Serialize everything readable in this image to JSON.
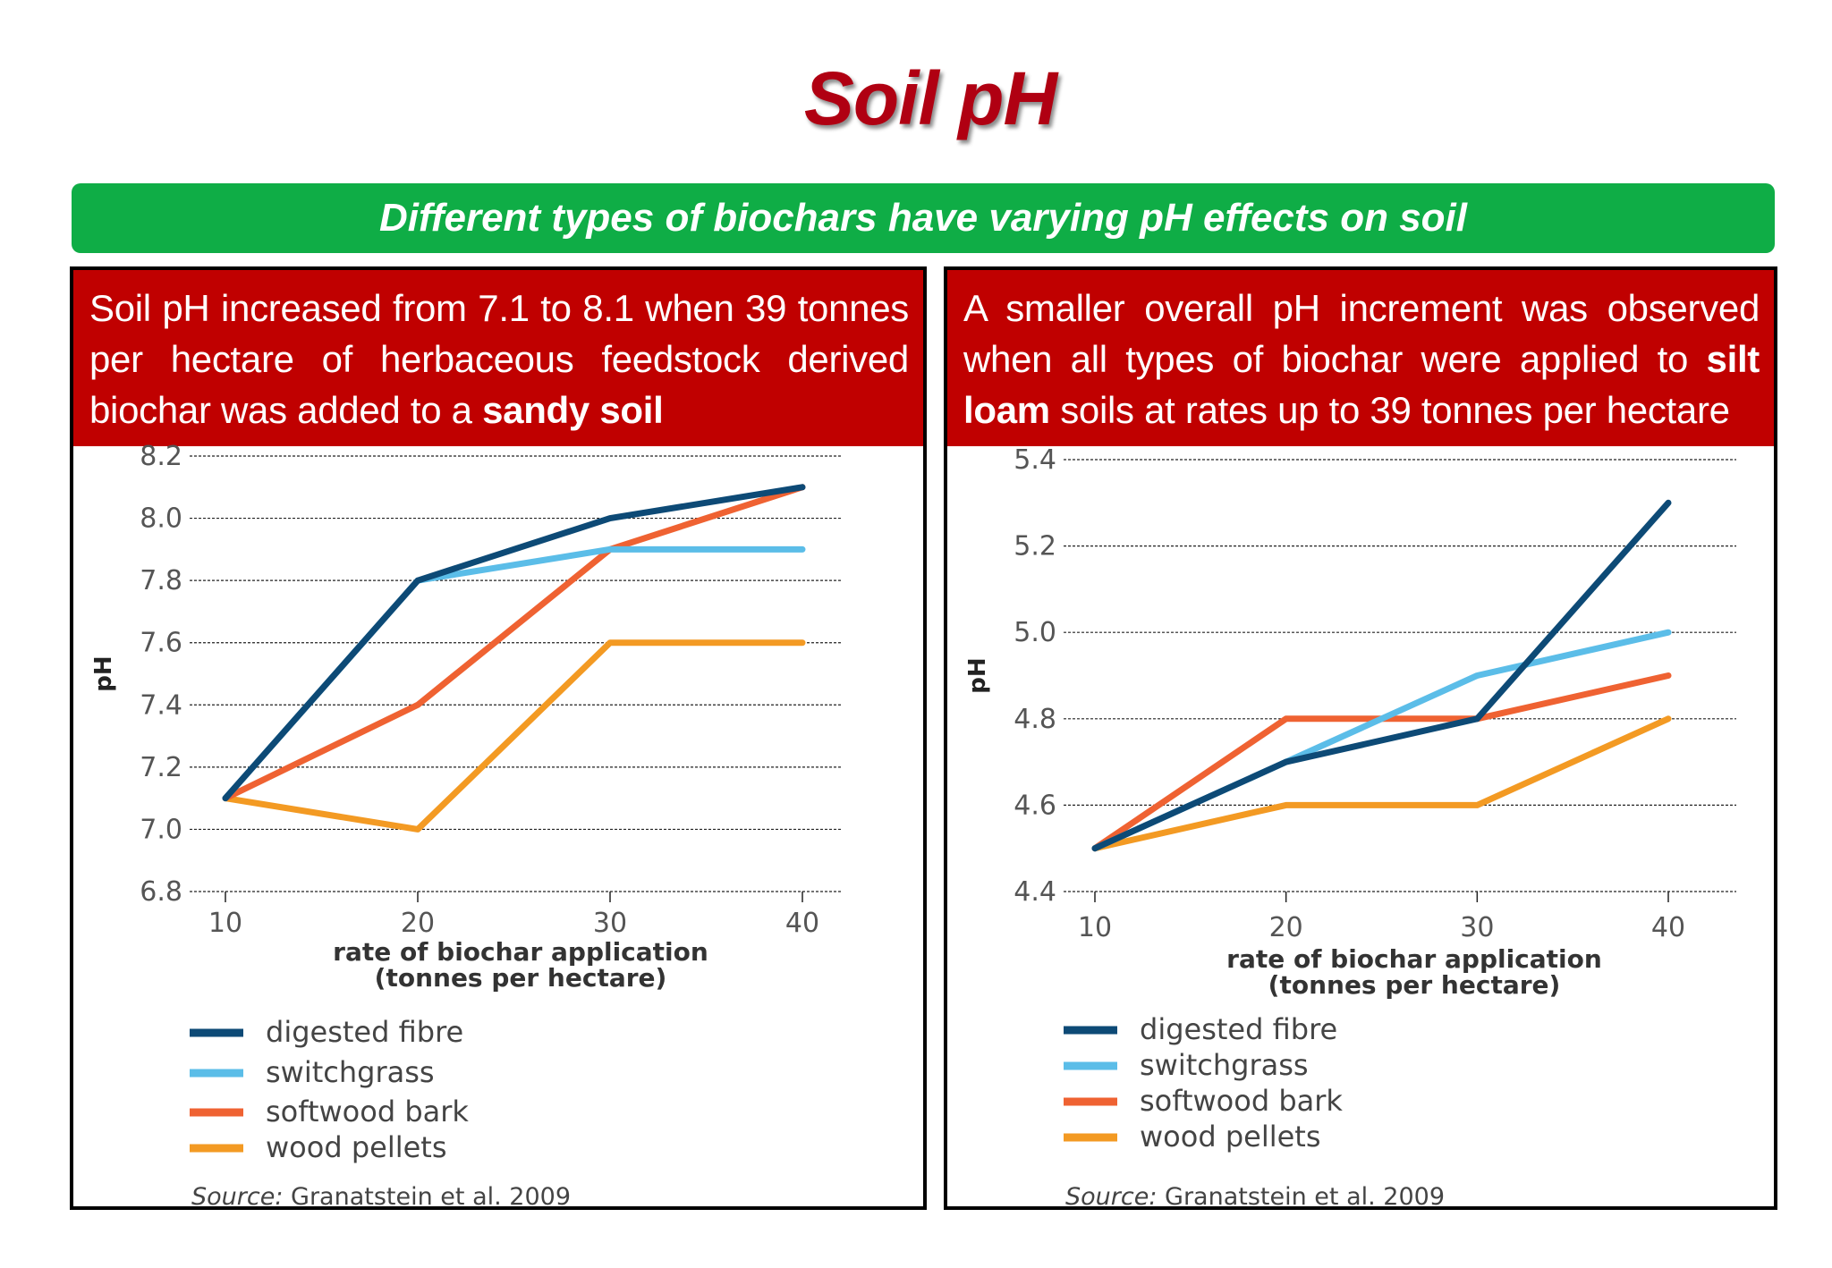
{
  "page": {
    "title": "Soil pH",
    "banner": "Different types of biochars have varying pH effects on soil"
  },
  "panels": [
    {
      "header_pre": "Soil pH increased from 7.1 to 8.1 when 39 tonnes per hectare of herbaceous feedstock derived biochar was added to a ",
      "header_bold": "sandy soil",
      "header_post": "",
      "source_label": "Source:",
      "source_text": " Granatstein et al. 2009"
    },
    {
      "header_pre": "A smaller overall pH increment was observed when all types of biochar were applied to ",
      "header_bold": "silt loam",
      "header_post": " soils at rates up to 39 tonnes per hectare",
      "source_label": "Source:",
      "source_text": " Granatstein et al. 2009"
    }
  ],
  "colors": {
    "red": "#c00000",
    "green": "#0fad46",
    "digested_fibre": "#0d4a76",
    "switchgrass": "#5bbde8",
    "softwood_bark": "#ef6232",
    "wood_pellets": "#f39a23"
  },
  "chart_data": [
    {
      "type": "line",
      "x": [
        10,
        20,
        30,
        40
      ],
      "xlabel": "rate of biochar application (tonnes per hectare)",
      "xlabel_line1": "rate of biochar application",
      "xlabel_line2": "(tonnes per hectare)",
      "ylabel": "pH",
      "ylim": [
        6.8,
        8.2
      ],
      "yticks": [
        "6.8",
        "7.0",
        "7.2",
        "7.4",
        "7.6",
        "7.8",
        "8.0",
        "8.2"
      ],
      "xticks": [
        "10",
        "20",
        "30",
        "40"
      ],
      "grid": true,
      "legend_position": "bottom-left",
      "series": [
        {
          "name": "digested fibre",
          "color": "#0d4a76",
          "values": [
            7.1,
            7.8,
            8.0,
            8.1
          ]
        },
        {
          "name": "switchgrass",
          "color": "#5bbde8",
          "values": [
            7.1,
            7.8,
            7.9,
            7.9
          ]
        },
        {
          "name": "softwood bark",
          "color": "#ef6232",
          "values": [
            7.1,
            7.4,
            7.9,
            8.1
          ]
        },
        {
          "name": "wood pellets",
          "color": "#f39a23",
          "values": [
            7.1,
            7.0,
            7.6,
            7.6
          ]
        }
      ]
    },
    {
      "type": "line",
      "x": [
        10,
        20,
        30,
        40
      ],
      "xlabel": "rate of biochar application (tonnes per hectare)",
      "xlabel_line1": "rate of biochar application",
      "xlabel_line2": "(tonnes per hectare)",
      "ylabel": "pH",
      "ylim": [
        4.4,
        5.4
      ],
      "yticks": [
        "4.4",
        "4.6",
        "4.8",
        "5.0",
        "5.2",
        "5.4"
      ],
      "xticks": [
        "10",
        "20",
        "30",
        "40"
      ],
      "grid": true,
      "legend_position": "bottom-left",
      "series": [
        {
          "name": "digested fibre",
          "color": "#0d4a76",
          "values": [
            4.5,
            4.7,
            4.8,
            5.3
          ]
        },
        {
          "name": "switchgrass",
          "color": "#5bbde8",
          "values": [
            4.5,
            4.7,
            4.9,
            5.0
          ]
        },
        {
          "name": "softwood bark",
          "color": "#ef6232",
          "values": [
            4.5,
            4.8,
            4.8,
            4.9
          ]
        },
        {
          "name": "wood pellets",
          "color": "#f39a23",
          "values": [
            4.5,
            4.6,
            4.6,
            4.8
          ]
        }
      ]
    }
  ]
}
